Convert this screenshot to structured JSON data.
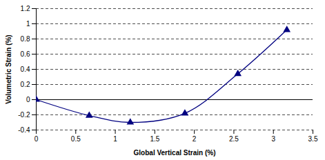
{
  "chart_data": {
    "type": "line",
    "x": [
      0,
      0.67,
      1.19,
      1.88,
      2.55,
      3.17
    ],
    "series": [
      {
        "name": "Volumetric Strain",
        "color": "#000080",
        "values": [
          0,
          -0.21,
          -0.3,
          -0.18,
          0.34,
          0.92
        ],
        "marker": "triangle",
        "line_style": "solid"
      }
    ],
    "x_label": "Global Vertical Strain (%)",
    "y_label": "Volumetric Strain (%)",
    "xlim": [
      0,
      3.5
    ],
    "xticks": [
      0,
      0.5,
      1,
      1.5,
      2,
      2.5,
      3,
      3.5
    ],
    "ylim": [
      -0.4,
      1.2
    ],
    "yticks": [
      -0.4,
      -0.2,
      0,
      0.2,
      0.4,
      0.6,
      0.8,
      1,
      1.2
    ],
    "grid": true
  }
}
